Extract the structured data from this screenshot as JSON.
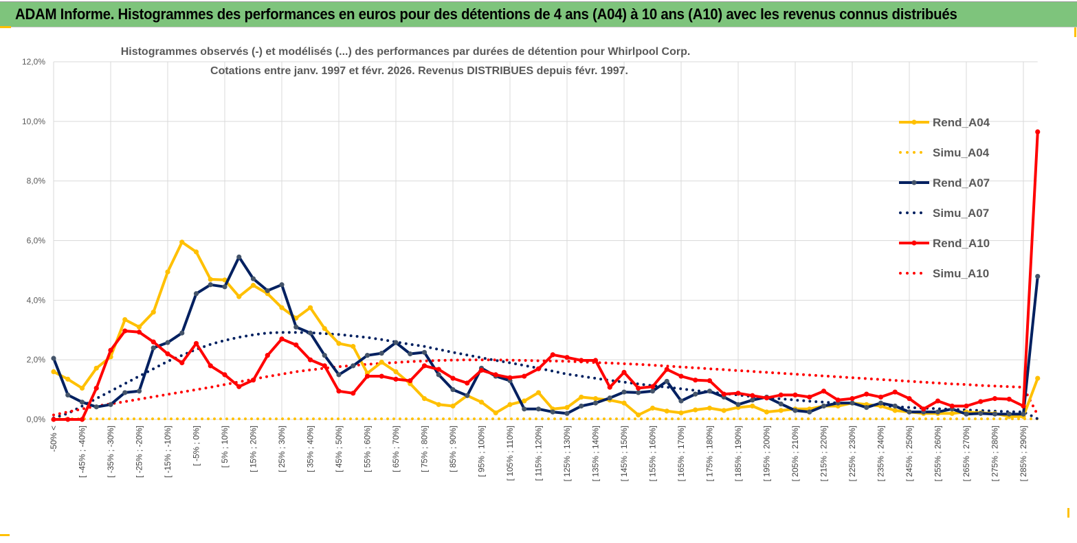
{
  "header": {
    "title": "ADAM Informe. Histogrammes des performances en euros pour des détentions de 4 ans (A04) à 10 ans (A10) avec les revenus connus distribués"
  },
  "colors": {
    "header_bg": "#7ec47c",
    "A04": "#ffc000",
    "A07": "#002060",
    "A07_marker": "#44546a",
    "A10": "#ff0000"
  },
  "chart_data": {
    "type": "line",
    "title_line1": "Histogrammes observés (-) et modélisés (...) des performances par durées de détention pour Whirlpool Corp.",
    "title_line2": "Cotations entre janv. 1997 et févr. 2026. Revenus DISTRIBUES depuis févr. 1997.",
    "xlabel": "",
    "ylabel": "",
    "ylim": [
      0,
      12
    ],
    "y_ticks": [
      "0,0%",
      "2,0%",
      "4,0%",
      "6,0%",
      "8,0%",
      "10,0%",
      "12,0%"
    ],
    "x_tick_labels": [
      "-50% <",
      "[ -45% ; -40%]",
      "[ -35% ; -30%]",
      "[ -25% ; -20%]",
      "[ -15% ; -10%]",
      "[ -5% ; 0%]",
      "[ 5% ; 10%]",
      "[ 15% ; 20%]",
      "[ 25% ; 30%]",
      "[ 35% ; 40%]",
      "[ 45% ; 50%]",
      "[ 55% ; 60%]",
      "[ 65% ; 70%]",
      "[ 75% ; 80%]",
      "[ 85% ; 90%]",
      "[ 95% ; 100%]",
      "[ 105% ; 110%]",
      "[ 115% ; 120%]",
      "[ 125% ; 130%]",
      "[ 135% ; 140%]",
      "[ 145% ; 150%]",
      "[ 155% ; 160%]",
      "[ 165% ; 170%]",
      "[ 175% ; 180%]",
      "[ 185% ; 190%]",
      "[ 195% ; 200%]",
      "[ 205% ; 210%]",
      "[ 215% ; 220%]",
      "[ 225% ; 230%]",
      "[ 235% ; 240%]",
      "[ 245% ; 250%]",
      "[ 255% ; 260%]",
      "[ 265% ; 270%]",
      "[ 275% ; 280%]",
      "[ 285% ; 290%]"
    ],
    "grid": true,
    "legend_position": "right",
    "series": [
      {
        "name": "Rend_A04",
        "style": "solid",
        "color": "#ffc000",
        "values": [
          1.6,
          1.35,
          1.05,
          1.72,
          2.1,
          3.35,
          3.1,
          3.6,
          4.95,
          5.95,
          5.62,
          4.7,
          4.68,
          4.12,
          4.5,
          4.22,
          3.75,
          3.4,
          3.75,
          3.05,
          2.55,
          2.45,
          1.55,
          1.92,
          1.6,
          1.2,
          0.7,
          0.5,
          0.45,
          0.8,
          0.58,
          0.22,
          0.5,
          0.62,
          0.9,
          0.35,
          0.4,
          0.75,
          0.7,
          0.65,
          0.55,
          0.15,
          0.38,
          0.28,
          0.22,
          0.32,
          0.38,
          0.3,
          0.4,
          0.45,
          0.25,
          0.3,
          0.35,
          0.35,
          0.45,
          0.45,
          0.55,
          0.5,
          0.45,
          0.3,
          0.25,
          0.2,
          0.2,
          0.2,
          0.25,
          0.22,
          0.2,
          0.1,
          0.1,
          1.38
        ]
      },
      {
        "name": "Simu_A04",
        "style": "dotted",
        "color": "#ffc000",
        "values": [
          0.02,
          0.02,
          0.02,
          0.02,
          0.02,
          0.02,
          0.02,
          0.02,
          0.02,
          0.02,
          0.02,
          0.02,
          0.02,
          0.02,
          0.02,
          0.02,
          0.02,
          0.02,
          0.02,
          0.02,
          0.02,
          0.02,
          0.02,
          0.02,
          0.02,
          0.02,
          0.02,
          0.02,
          0.02,
          0.02,
          0.02,
          0.02,
          0.02,
          0.02,
          0.02,
          0.02,
          0.02,
          0.02,
          0.02,
          0.02,
          0.02,
          0.02,
          0.02,
          0.02,
          0.02,
          0.02,
          0.02,
          0.02,
          0.02,
          0.02,
          0.02,
          0.02,
          0.02,
          0.02,
          0.02,
          0.02,
          0.02,
          0.02,
          0.02,
          0.02,
          0.02,
          0.02,
          0.02,
          0.02,
          0.02,
          0.02,
          0.02,
          0.02,
          0.02,
          0.02
        ]
      },
      {
        "name": "Rend_A07",
        "style": "solid",
        "color": "#002060",
        "values": [
          2.05,
          0.82,
          0.58,
          0.42,
          0.5,
          0.9,
          0.95,
          2.4,
          2.58,
          2.9,
          4.22,
          4.52,
          4.45,
          5.45,
          4.72,
          4.32,
          4.52,
          3.1,
          2.9,
          2.15,
          1.5,
          1.8,
          2.15,
          2.22,
          2.58,
          2.2,
          2.25,
          1.5,
          1.0,
          0.8,
          1.72,
          1.45,
          1.3,
          0.35,
          0.35,
          0.25,
          0.2,
          0.45,
          0.55,
          0.72,
          0.92,
          0.9,
          0.95,
          1.28,
          0.62,
          0.85,
          0.95,
          0.75,
          0.5,
          0.65,
          0.75,
          0.52,
          0.3,
          0.25,
          0.45,
          0.55,
          0.55,
          0.4,
          0.55,
          0.45,
          0.25,
          0.25,
          0.25,
          0.35,
          0.18,
          0.2,
          0.18,
          0.18,
          0.18,
          4.8
        ]
      },
      {
        "name": "Simu_A07",
        "style": "dotted",
        "color": "#002060",
        "values": [
          0.05,
          0.2,
          0.45,
          0.7,
          0.95,
          1.2,
          1.45,
          1.7,
          1.95,
          2.15,
          2.35,
          2.52,
          2.65,
          2.76,
          2.84,
          2.9,
          2.92,
          2.92,
          2.91,
          2.88,
          2.85,
          2.8,
          2.75,
          2.68,
          2.6,
          2.52,
          2.45,
          2.35,
          2.25,
          2.16,
          2.07,
          1.98,
          1.9,
          1.81,
          1.72,
          1.62,
          1.52,
          1.45,
          1.38,
          1.31,
          1.25,
          1.19,
          1.13,
          1.08,
          1.03,
          0.97,
          0.92,
          0.87,
          0.82,
          0.77,
          0.73,
          0.69,
          0.65,
          0.61,
          0.58,
          0.55,
          0.52,
          0.49,
          0.46,
          0.43,
          0.4,
          0.38,
          0.36,
          0.34,
          0.32,
          0.3,
          0.28,
          0.26,
          0.25,
          0.02
        ]
      },
      {
        "name": "Rend_A10",
        "style": "solid",
        "color": "#ff0000",
        "values": [
          0,
          0,
          0,
          1.05,
          2.32,
          2.97,
          2.93,
          2.6,
          2.2,
          1.9,
          2.55,
          1.8,
          1.5,
          1.1,
          1.32,
          2.15,
          2.7,
          2.5,
          2.0,
          1.8,
          0.95,
          0.88,
          1.45,
          1.45,
          1.35,
          1.3,
          1.8,
          1.68,
          1.38,
          1.22,
          1.65,
          1.5,
          1.4,
          1.45,
          1.7,
          2.17,
          2.08,
          1.98,
          1.98,
          1.08,
          1.58,
          1.05,
          1.1,
          1.68,
          1.45,
          1.32,
          1.3,
          0.85,
          0.88,
          0.8,
          0.72,
          0.82,
          0.82,
          0.75,
          0.95,
          0.65,
          0.7,
          0.85,
          0.75,
          0.92,
          0.7,
          0.35,
          0.62,
          0.45,
          0.45,
          0.6,
          0.7,
          0.68,
          0.45,
          9.65
        ]
      },
      {
        "name": "Simu_A10",
        "style": "dotted",
        "color": "#ff0000",
        "values": [
          0.15,
          0.25,
          0.35,
          0.45,
          0.52,
          0.6,
          0.68,
          0.76,
          0.84,
          0.92,
          1.0,
          1.08,
          1.17,
          1.26,
          1.35,
          1.44,
          1.52,
          1.6,
          1.66,
          1.72,
          1.77,
          1.81,
          1.85,
          1.88,
          1.91,
          1.94,
          1.96,
          1.98,
          1.99,
          2.0,
          2.0,
          2.0,
          1.99,
          1.98,
          1.97,
          1.96,
          1.95,
          1.93,
          1.91,
          1.89,
          1.87,
          1.85,
          1.82,
          1.79,
          1.76,
          1.73,
          1.7,
          1.67,
          1.64,
          1.61,
          1.58,
          1.55,
          1.52,
          1.49,
          1.46,
          1.43,
          1.4,
          1.37,
          1.34,
          1.31,
          1.28,
          1.25,
          1.22,
          1.19,
          1.17,
          1.14,
          1.12,
          1.1,
          1.08,
          0.15
        ]
      }
    ]
  }
}
